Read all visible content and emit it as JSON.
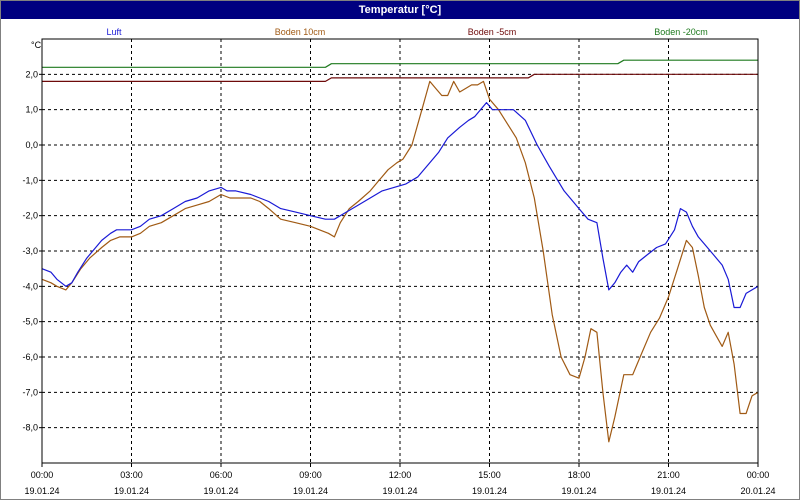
{
  "window": {
    "title": "Temperatur [°C]"
  },
  "chart_data": {
    "type": "line",
    "ylabel": "°C",
    "ylim": [
      -9,
      3
    ],
    "y_ticks": [
      "2,0",
      "1,0",
      "0,0",
      "-1,0",
      "-2,0",
      "-3,0",
      "-4,0",
      "-5,0",
      "-6,0",
      "-7,0",
      "-8,0"
    ],
    "y_tick_values": [
      2,
      1,
      0,
      -1,
      -2,
      -3,
      -4,
      -5,
      -6,
      -7,
      -8
    ],
    "x_ticks": [
      {
        "time": "00:00",
        "date": "19.01.24",
        "h": 0
      },
      {
        "time": "03:00",
        "date": "19.01.24",
        "h": 3
      },
      {
        "time": "06:00",
        "date": "19.01.24",
        "h": 6
      },
      {
        "time": "09:00",
        "date": "19.01.24",
        "h": 9
      },
      {
        "time": "12:00",
        "date": "19.01.24",
        "h": 12
      },
      {
        "time": "15:00",
        "date": "19.01.24",
        "h": 15
      },
      {
        "time": "18:00",
        "date": "19.01.24",
        "h": 18
      },
      {
        "time": "21:00",
        "date": "19.01.24",
        "h": 21
      },
      {
        "time": "00:00",
        "date": "20.01.24",
        "h": 24
      }
    ],
    "xlim_hours": [
      0,
      24
    ],
    "grid": true,
    "legend_position": "top",
    "series": [
      {
        "name": "Luft",
        "color": "#1a1ad6",
        "x": [
          0,
          0.3,
          0.5,
          0.8,
          1.0,
          1.2,
          1.5,
          1.8,
          2.0,
          2.3,
          2.5,
          2.8,
          3.0,
          3.3,
          3.6,
          4.0,
          4.4,
          4.8,
          5.2,
          5.6,
          6.0,
          6.2,
          6.5,
          7.0,
          7.3,
          7.6,
          8.0,
          8.5,
          9.0,
          9.5,
          9.8,
          10.2,
          10.6,
          11.0,
          11.4,
          11.8,
          12.2,
          12.6,
          13.0,
          13.3,
          13.6,
          14.0,
          14.3,
          14.5,
          14.7,
          14.9,
          15.1,
          15.5,
          15.8,
          16.2,
          16.6,
          17.0,
          17.5,
          18.0,
          18.3,
          18.6,
          18.8,
          19.0,
          19.2,
          19.4,
          19.6,
          19.8,
          20.0,
          20.3,
          20.6,
          20.9,
          21.2,
          21.4,
          21.6,
          21.8,
          22.0,
          22.2,
          22.5,
          22.8,
          23.0,
          23.2,
          23.4,
          23.6,
          23.8,
          24.0
        ],
        "y": [
          -3.5,
          -3.6,
          -3.8,
          -4.0,
          -3.9,
          -3.6,
          -3.2,
          -2.9,
          -2.7,
          -2.5,
          -2.4,
          -2.4,
          -2.4,
          -2.3,
          -2.1,
          -2.0,
          -1.8,
          -1.6,
          -1.5,
          -1.3,
          -1.2,
          -1.3,
          -1.3,
          -1.4,
          -1.5,
          -1.6,
          -1.8,
          -1.9,
          -2.0,
          -2.1,
          -2.1,
          -1.9,
          -1.7,
          -1.5,
          -1.3,
          -1.2,
          -1.1,
          -0.9,
          -0.5,
          -0.2,
          0.2,
          0.5,
          0.7,
          0.8,
          1.0,
          1.2,
          1.0,
          1.0,
          1.0,
          0.7,
          0.0,
          -0.6,
          -1.3,
          -1.8,
          -2.1,
          -2.2,
          -3.2,
          -4.1,
          -3.9,
          -3.6,
          -3.4,
          -3.6,
          -3.3,
          -3.1,
          -2.9,
          -2.8,
          -2.4,
          -1.8,
          -1.9,
          -2.3,
          -2.6,
          -2.8,
          -3.1,
          -3.4,
          -3.8,
          -4.6,
          -4.6,
          -4.2,
          -4.1,
          -4.0
        ]
      },
      {
        "name": "Boden 10cm",
        "color": "#a05a14",
        "x": [
          0,
          0.3,
          0.5,
          0.8,
          1.0,
          1.3,
          1.6,
          2.0,
          2.3,
          2.6,
          3.0,
          3.3,
          3.6,
          4.0,
          4.4,
          4.8,
          5.2,
          5.6,
          6.0,
          6.3,
          6.6,
          7.0,
          7.3,
          7.6,
          8.0,
          8.5,
          9.0,
          9.3,
          9.6,
          9.8,
          10.0,
          10.3,
          10.6,
          11.0,
          11.3,
          11.6,
          11.9,
          12.1,
          12.4,
          12.6,
          12.8,
          13.0,
          13.2,
          13.4,
          13.6,
          13.8,
          14.0,
          14.2,
          14.4,
          14.6,
          14.8,
          15.0,
          15.3,
          15.6,
          15.9,
          16.2,
          16.5,
          16.8,
          17.1,
          17.4,
          17.7,
          18.0,
          18.2,
          18.4,
          18.6,
          18.8,
          19.0,
          19.2,
          19.5,
          19.8,
          20.1,
          20.4,
          20.7,
          21.0,
          21.3,
          21.6,
          21.8,
          22.0,
          22.2,
          22.4,
          22.6,
          22.8,
          23.0,
          23.2,
          23.4,
          23.6,
          23.8,
          24.0
        ],
        "y": [
          -3.8,
          -3.9,
          -4.0,
          -4.1,
          -3.9,
          -3.5,
          -3.2,
          -2.9,
          -2.7,
          -2.6,
          -2.6,
          -2.5,
          -2.3,
          -2.2,
          -2.0,
          -1.8,
          -1.7,
          -1.6,
          -1.4,
          -1.5,
          -1.5,
          -1.5,
          -1.6,
          -1.8,
          -2.1,
          -2.2,
          -2.3,
          -2.4,
          -2.5,
          -2.6,
          -2.2,
          -1.8,
          -1.6,
          -1.3,
          -1.0,
          -0.7,
          -0.5,
          -0.4,
          0.0,
          0.6,
          1.2,
          1.8,
          1.6,
          1.4,
          1.4,
          1.8,
          1.5,
          1.6,
          1.7,
          1.7,
          1.8,
          1.3,
          1.0,
          0.6,
          0.2,
          -0.5,
          -1.5,
          -3.0,
          -4.8,
          -6.0,
          -6.5,
          -6.6,
          -6.0,
          -5.2,
          -5.3,
          -7.0,
          -8.4,
          -7.7,
          -6.5,
          -6.5,
          -5.9,
          -5.3,
          -4.9,
          -4.3,
          -3.5,
          -2.7,
          -2.9,
          -3.7,
          -4.6,
          -5.1,
          -5.4,
          -5.7,
          -5.3,
          -6.2,
          -7.6,
          -7.6,
          -7.1,
          -7.0
        ]
      },
      {
        "name": "Boden -5cm",
        "color": "#6e0a0a",
        "x": [
          0,
          9.5,
          9.7,
          16.3,
          16.5,
          24.0
        ],
        "y": [
          1.8,
          1.8,
          1.9,
          1.9,
          2.0,
          2.0
        ]
      },
      {
        "name": "Boden -20cm",
        "color": "#1f7a1f",
        "x": [
          0,
          9.5,
          9.7,
          19.3,
          19.5,
          24.0
        ],
        "y": [
          2.2,
          2.2,
          2.3,
          2.3,
          2.4,
          2.4
        ]
      }
    ]
  }
}
